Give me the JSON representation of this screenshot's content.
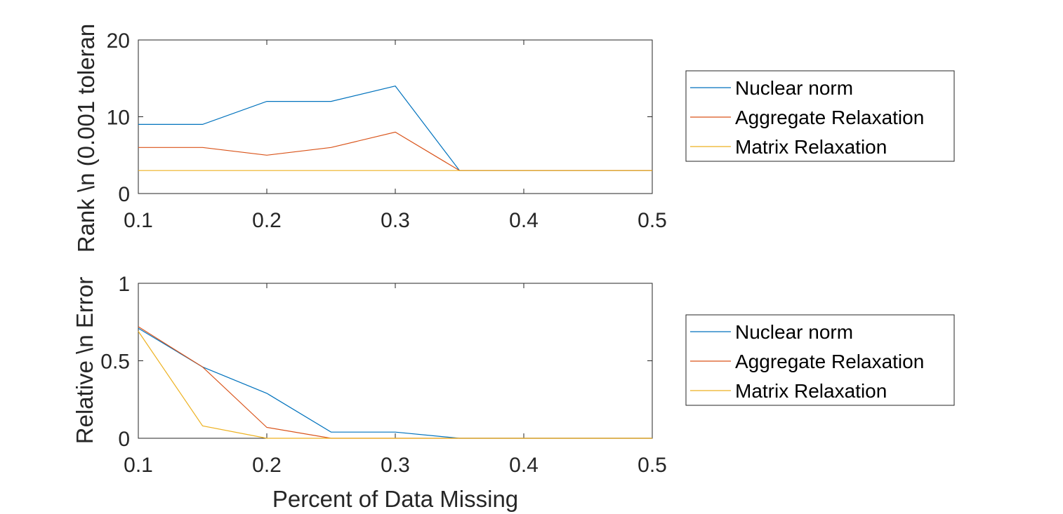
{
  "chart_data": [
    {
      "type": "line",
      "title": "",
      "xlabel": "",
      "ylabel": "Rank \\n (0.001 toleran",
      "xlim": [
        0.1,
        0.5
      ],
      "ylim": [
        0,
        20
      ],
      "xticks": [
        "0.1",
        "0.2",
        "0.3",
        "0.4",
        "0.5"
      ],
      "yticks": [
        "0",
        "10",
        "20"
      ],
      "x": [
        0.1,
        0.15,
        0.2,
        0.25,
        0.3,
        0.35,
        0.4,
        0.45,
        0.5
      ],
      "series": [
        {
          "name": "Nuclear norm",
          "color": "#0072BD",
          "values": [
            9,
            9,
            12,
            12,
            14,
            3,
            3,
            3,
            3
          ]
        },
        {
          "name": "Aggregate Relaxation",
          "color": "#D95319",
          "values": [
            6,
            6,
            5,
            6,
            8,
            3,
            3,
            3,
            3
          ]
        },
        {
          "name": "Matrix Relaxation",
          "color": "#EDB120",
          "values": [
            3,
            3,
            3,
            3,
            3,
            3,
            3,
            3,
            3
          ]
        }
      ],
      "grid": false,
      "legend": "outside-right"
    },
    {
      "type": "line",
      "title": "",
      "xlabel": "Percent of Data Missing",
      "ylabel": "Relative \\n Error",
      "xlim": [
        0.1,
        0.5
      ],
      "ylim": [
        0,
        1
      ],
      "xticks": [
        "0.1",
        "0.2",
        "0.3",
        "0.4",
        "0.5"
      ],
      "yticks": [
        "0",
        "0.5",
        "1"
      ],
      "x": [
        0.1,
        0.15,
        0.2,
        0.25,
        0.3,
        0.35,
        0.4,
        0.45,
        0.5
      ],
      "series": [
        {
          "name": "Nuclear norm",
          "color": "#0072BD",
          "values": [
            0.71,
            0.46,
            0.29,
            0.04,
            0.04,
            0.0,
            0.0,
            0.0,
            0.0
          ]
        },
        {
          "name": "Aggregate Relaxation",
          "color": "#D95319",
          "values": [
            0.72,
            0.46,
            0.07,
            0.0,
            0.0,
            0.0,
            0.0,
            0.0,
            0.0
          ]
        },
        {
          "name": "Matrix Relaxation",
          "color": "#EDB120",
          "values": [
            0.69,
            0.08,
            0.0,
            0.0,
            0.0,
            0.0,
            0.0,
            0.0,
            0.0
          ]
        }
      ],
      "grid": false,
      "legend": "outside-right"
    }
  ]
}
